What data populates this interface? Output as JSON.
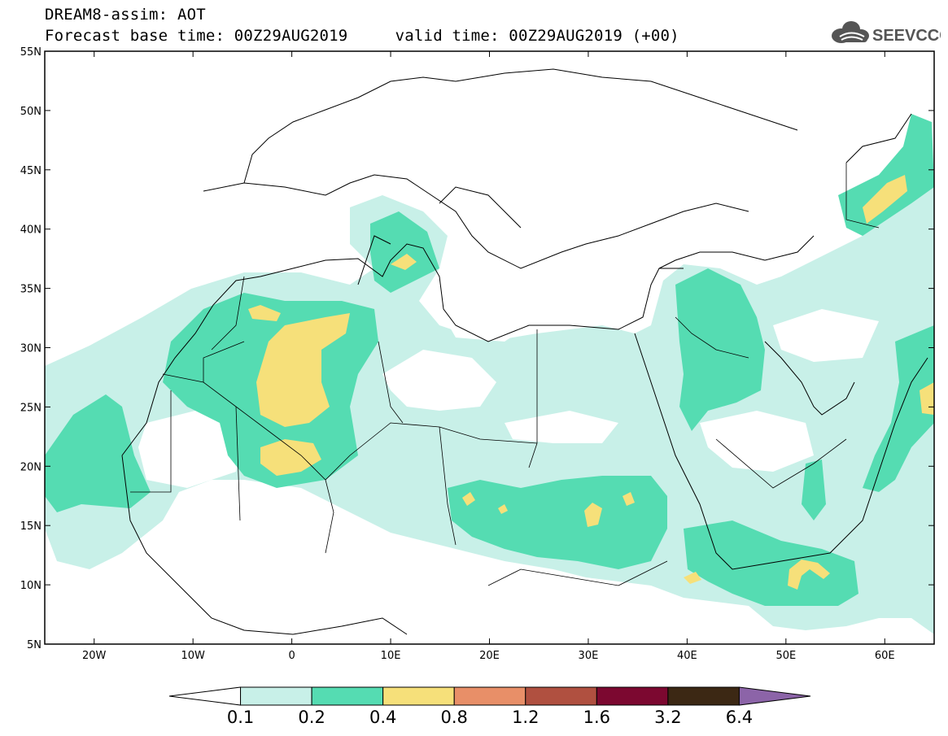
{
  "title": {
    "line1": "DREAM8-assim: AOT",
    "line2": "Forecast base time: 00Z29AUG2019     valid time: 00Z29AUG2019 (+00)"
  },
  "logo": {
    "text": "SEEVCCC",
    "icon": "cloud-logo-icon"
  },
  "map": {
    "lon_range": [
      -25,
      65
    ],
    "lat_range": [
      5,
      55
    ],
    "lat_labels": [
      "55N",
      "50N",
      "45N",
      "40N",
      "35N",
      "30N",
      "25N",
      "20N",
      "15N",
      "10N",
      "5N"
    ],
    "lat_values": [
      55,
      50,
      45,
      40,
      35,
      30,
      25,
      20,
      15,
      10,
      5
    ],
    "lon_labels": [
      "20W",
      "10W",
      "0",
      "10E",
      "20E",
      "30E",
      "40E",
      "50E",
      "60E"
    ],
    "lon_values": [
      -20,
      -10,
      0,
      10,
      20,
      30,
      40,
      50,
      60
    ]
  },
  "colorbar": {
    "labels": [
      "0.1",
      "0.2",
      "0.4",
      "0.8",
      "1.2",
      "1.6",
      "3.2",
      "6.4"
    ],
    "colors": [
      "#ffffff",
      "#c8f0e8",
      "#55dcb2",
      "#f6e07a",
      "#e88f68",
      "#b05040",
      "#7c0830",
      "#3c2814",
      "#8c64a8"
    ]
  }
}
